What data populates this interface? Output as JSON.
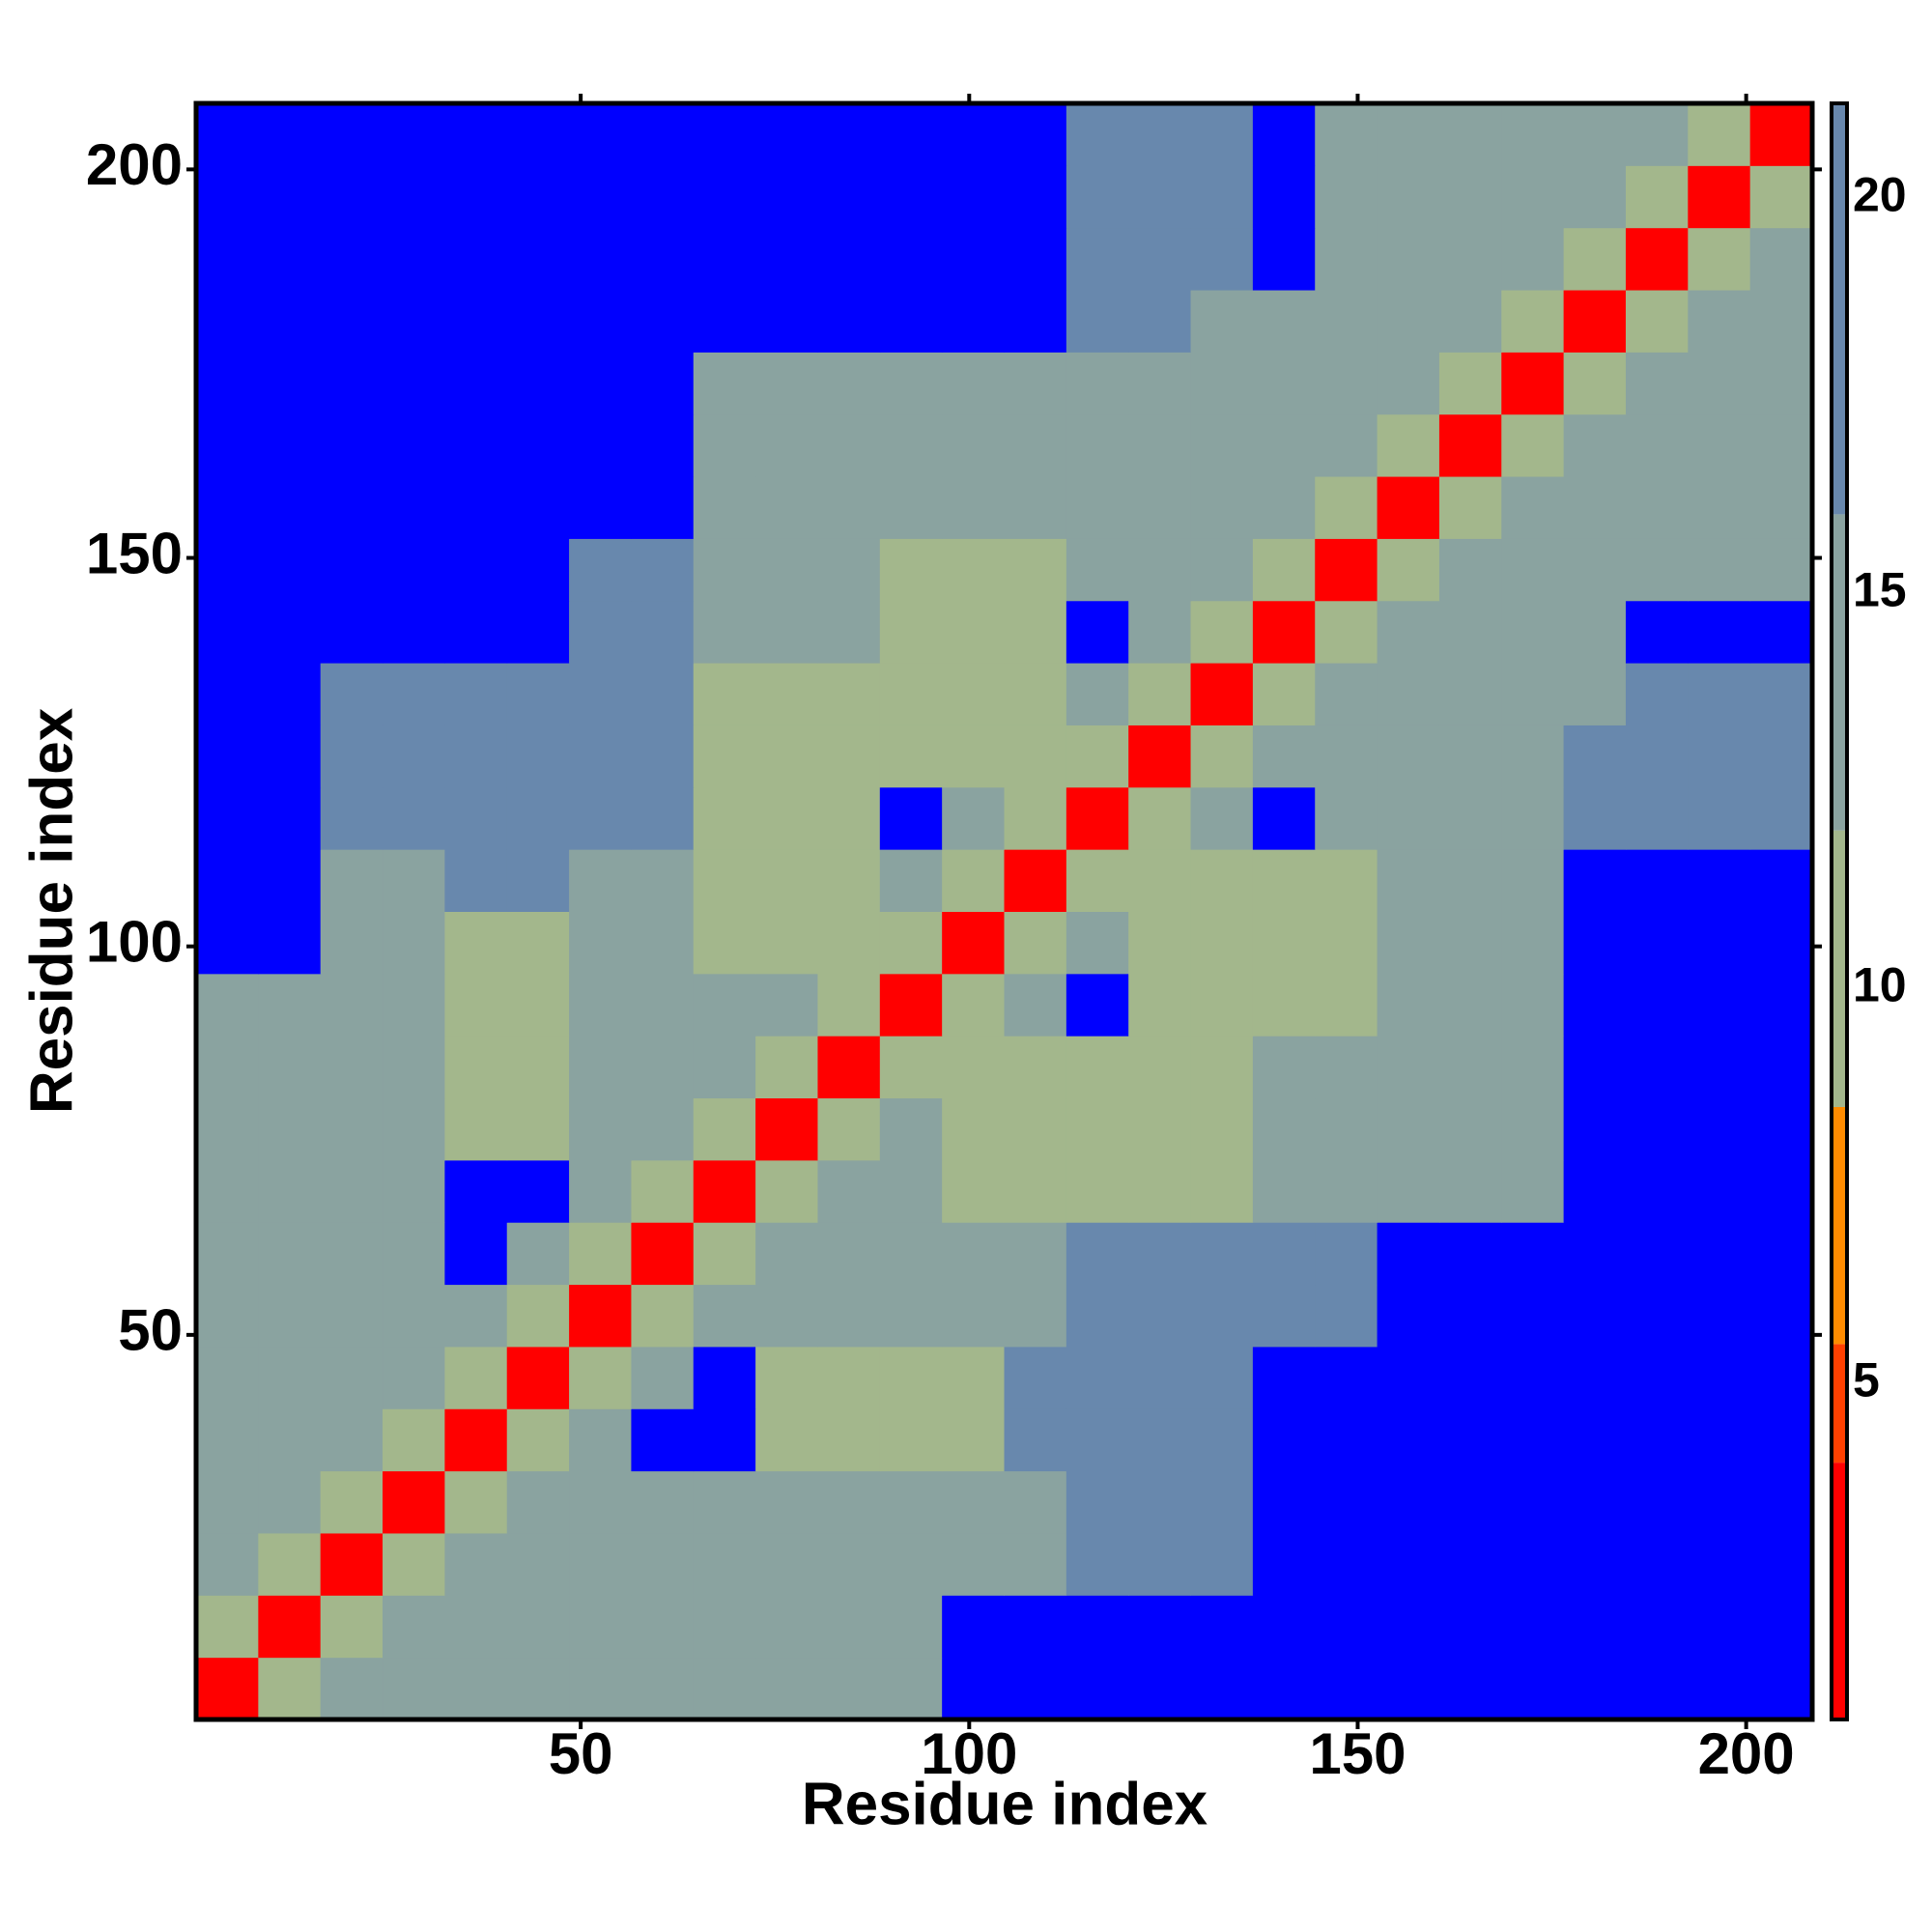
{
  "chart_data": {
    "type": "heatmap",
    "xlabel": "Residue index",
    "ylabel": "Residue index",
    "xlim": [
      0.5,
      208.5
    ],
    "ylim": [
      0.5,
      208.5
    ],
    "xticks": [
      50,
      100,
      150,
      200
    ],
    "yticks": [
      50,
      100,
      150,
      200
    ],
    "clim": [
      0.75,
      21.2
    ],
    "cticks": [
      5,
      10,
      15,
      20
    ],
    "colorscale": [
      {
        "value": 0.75,
        "color": "#ff0000"
      },
      {
        "value": 4,
        "color": "#ff4000"
      },
      {
        "value": 5.5,
        "color": "#ff8c00"
      },
      {
        "value": 8.5,
        "color": "#a3b78c"
      },
      {
        "value": 12,
        "color": "#8aa3a0"
      },
      {
        "value": 16,
        "color": "#6888ad"
      }
    ],
    "over_color": "#0000ff",
    "x": [
      4.5,
      12.5,
      20.5,
      28.5,
      36.5,
      44.5,
      52.5,
      60.5,
      68.5,
      76.5,
      84.5,
      92.5,
      100.5,
      108.5,
      116.5,
      124.5,
      132.5,
      140.5,
      148.5,
      156.5,
      164.5,
      172.5,
      180.5,
      188.5,
      196.5,
      204.5
    ],
    "y": [
      4.5,
      12.5,
      20.5,
      28.5,
      36.5,
      44.5,
      52.5,
      60.5,
      68.5,
      76.5,
      84.5,
      92.5,
      100.5,
      108.5,
      116.5,
      124.5,
      132.5,
      140.5,
      148.5,
      156.5,
      164.5,
      172.5,
      180.5,
      188.5,
      196.5,
      204.5
    ],
    "z": [
      [
        3,
        11,
        12,
        12,
        12,
        12,
        12,
        15,
        15,
        15,
        15,
        15,
        24,
        24,
        24,
        24,
        24,
        24,
        24,
        24,
        24,
        24,
        24,
        24,
        24,
        24
      ],
      [
        11,
        3,
        11,
        12,
        12,
        12,
        12,
        15,
        15,
        15,
        15,
        15,
        24,
        24,
        24,
        24,
        24,
        24,
        24,
        24,
        24,
        24,
        24,
        24,
        24,
        24
      ],
      [
        12,
        11,
        3,
        11,
        13,
        13,
        13,
        13,
        13,
        14,
        14,
        14,
        14,
        14,
        18,
        18,
        18,
        24,
        24,
        24,
        24,
        24,
        24,
        24,
        24,
        24
      ],
      [
        12,
        12,
        11,
        3,
        11,
        13,
        13,
        13,
        13,
        14,
        14,
        14,
        14,
        14,
        18,
        18,
        18,
        24,
        24,
        24,
        24,
        24,
        24,
        24,
        24,
        24
      ],
      [
        12,
        12,
        13,
        11,
        3,
        11,
        15,
        24,
        24,
        11,
        11,
        11,
        11,
        16,
        16,
        16,
        16,
        24,
        24,
        24,
        24,
        24,
        24,
        24,
        24,
        24
      ],
      [
        12,
        12,
        13,
        13,
        11,
        3,
        11,
        15,
        24,
        11,
        11,
        11,
        11,
        16,
        16,
        16,
        16,
        24,
        24,
        24,
        24,
        24,
        24,
        24,
        24,
        24
      ],
      [
        12,
        12,
        13,
        13,
        15,
        11,
        3,
        11,
        15,
        12,
        12,
        12,
        12,
        12,
        18,
        18,
        18,
        19,
        19,
        24,
        24,
        24,
        24,
        24,
        24,
        24
      ],
      [
        15,
        15,
        13,
        13,
        24,
        15,
        11,
        3,
        11,
        12,
        12,
        12,
        12,
        12,
        18,
        18,
        18,
        19,
        19,
        24,
        24,
        24,
        24,
        24,
        24,
        24
      ],
      [
        15,
        15,
        13,
        13,
        24,
        24,
        15,
        11,
        3,
        11,
        12,
        12,
        11,
        11,
        11,
        11,
        11,
        14,
        14,
        14,
        14,
        14,
        24,
        24,
        24,
        24
      ],
      [
        15,
        15,
        14,
        14,
        11,
        11,
        12,
        12,
        11,
        3,
        11,
        15,
        11,
        11,
        11,
        11,
        11,
        14,
        14,
        14,
        14,
        14,
        24,
        24,
        24,
        24
      ],
      [
        15,
        15,
        14,
        14,
        11,
        11,
        12,
        12,
        12,
        11,
        3,
        11,
        11,
        11,
        11,
        11,
        11,
        14,
        14,
        14,
        14,
        14,
        24,
        24,
        24,
        24
      ],
      [
        15,
        15,
        14,
        14,
        11,
        11,
        12,
        12,
        12,
        15,
        11,
        3,
        11,
        15,
        24,
        11,
        11,
        11,
        11,
        14,
        14,
        14,
        24,
        24,
        24,
        24
      ],
      [
        24,
        24,
        14,
        14,
        11,
        11,
        12,
        12,
        11,
        11,
        11,
        11,
        3,
        11,
        15,
        11,
        11,
        11,
        11,
        14,
        14,
        14,
        24,
        24,
        24,
        24
      ],
      [
        24,
        24,
        14,
        14,
        16,
        16,
        12,
        12,
        11,
        11,
        11,
        15,
        11,
        3,
        11,
        11,
        11,
        11,
        11,
        14,
        14,
        14,
        24,
        24,
        24,
        24
      ],
      [
        24,
        24,
        18,
        18,
        16,
        16,
        18,
        18,
        11,
        11,
        11,
        24,
        15,
        11,
        3,
        11,
        15,
        24,
        12,
        12,
        12,
        12,
        18,
        18,
        18,
        18
      ],
      [
        24,
        24,
        18,
        18,
        16,
        16,
        18,
        18,
        11,
        11,
        11,
        11,
        11,
        11,
        11,
        3,
        11,
        15,
        12,
        12,
        12,
        12,
        18,
        18,
        18,
        18
      ],
      [
        24,
        24,
        18,
        18,
        16,
        16,
        18,
        18,
        11,
        11,
        11,
        11,
        11,
        11,
        15,
        11,
        3,
        11,
        12,
        12,
        12,
        12,
        12,
        18,
        18,
        18
      ],
      [
        24,
        24,
        24,
        24,
        24,
        24,
        19,
        19,
        14,
        14,
        14,
        11,
        11,
        11,
        24,
        15,
        11,
        3,
        11,
        12,
        12,
        12,
        12,
        24,
        24,
        24
      ],
      [
        24,
        24,
        24,
        24,
        24,
        24,
        19,
        19,
        14,
        14,
        14,
        11,
        11,
        11,
        12,
        12,
        12,
        11,
        3,
        11,
        12,
        12,
        12,
        13,
        13,
        13
      ],
      [
        24,
        24,
        24,
        24,
        24,
        24,
        24,
        24,
        14,
        14,
        14,
        14,
        14,
        14,
        12,
        12,
        12,
        12,
        11,
        3,
        11,
        15,
        13,
        13,
        13,
        13
      ],
      [
        24,
        24,
        24,
        24,
        24,
        24,
        24,
        24,
        14,
        14,
        14,
        14,
        14,
        14,
        12,
        12,
        12,
        12,
        12,
        11,
        3,
        11,
        13,
        13,
        13,
        13
      ],
      [
        24,
        24,
        24,
        24,
        24,
        24,
        24,
        24,
        14,
        14,
        14,
        14,
        14,
        14,
        12,
        12,
        12,
        12,
        12,
        15,
        11,
        3,
        11,
        13,
        13,
        13
      ],
      [
        24,
        24,
        24,
        24,
        24,
        24,
        24,
        24,
        24,
        24,
        24,
        24,
        24,
        24,
        18,
        18,
        12,
        12,
        12,
        13,
        13,
        11,
        3,
        11,
        14,
        14
      ],
      [
        24,
        24,
        24,
        24,
        24,
        24,
        24,
        24,
        24,
        24,
        24,
        24,
        24,
        24,
        18,
        18,
        18,
        24,
        13,
        13,
        13,
        13,
        11,
        3,
        11,
        15
      ],
      [
        24,
        24,
        24,
        24,
        24,
        24,
        24,
        24,
        24,
        24,
        24,
        24,
        24,
        24,
        18,
        18,
        18,
        24,
        13,
        13,
        13,
        13,
        14,
        11,
        3,
        11
      ],
      [
        24,
        24,
        24,
        24,
        24,
        24,
        24,
        24,
        24,
        24,
        24,
        24,
        24,
        24,
        18,
        18,
        18,
        24,
        13,
        13,
        13,
        13,
        14,
        15,
        11,
        3
      ]
    ]
  }
}
